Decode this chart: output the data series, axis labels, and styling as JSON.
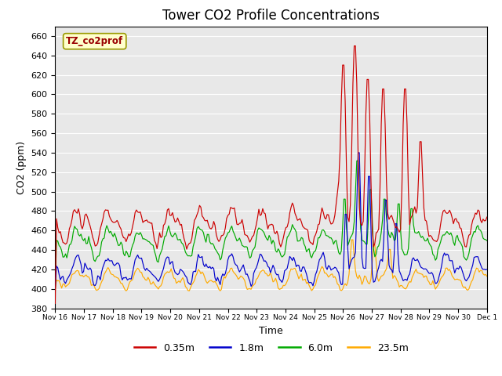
{
  "title": "Tower CO2 Profile Concentrations",
  "xlabel": "Time",
  "ylabel": "CO2 (ppm)",
  "ylim": [
    380,
    670
  ],
  "yticks": [
    380,
    400,
    420,
    440,
    460,
    480,
    500,
    520,
    540,
    560,
    580,
    600,
    620,
    640,
    660
  ],
  "xtick_labels": [
    "Nov 16",
    "Nov 17",
    "Nov 18",
    "Nov 19",
    "Nov 20",
    "Nov 21",
    "Nov 22",
    "Nov 23",
    "Nov 24",
    "Nov 25",
    "Nov 26",
    "Nov 27",
    "Nov 28",
    "Nov 29",
    "Nov 30",
    "Dec 1"
  ],
  "colors": {
    "red": "#cc0000",
    "blue": "#0000cc",
    "green": "#00aa00",
    "orange": "#ffaa00"
  },
  "legend_labels": [
    "0.35m",
    "1.8m",
    "6.0m",
    "23.5m"
  ],
  "tag_label": "TZ_co2prof",
  "tag_bg": "#ffffcc",
  "tag_border": "#999900",
  "plot_bg": "#e8e8e8",
  "grid_color": "#ffffff",
  "title_fontsize": 12,
  "tag_color": "#990000"
}
